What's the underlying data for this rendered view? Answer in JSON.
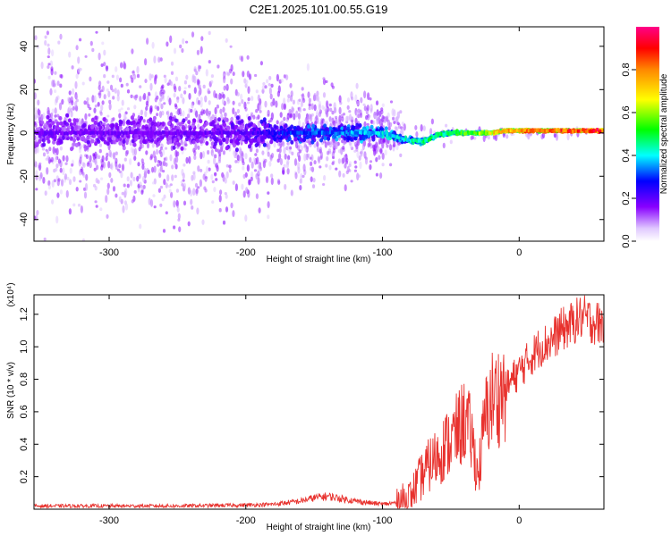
{
  "title": "C2E1.2025.101.00.55.G19",
  "chart_data": [
    {
      "type": "heatmap",
      "xlabel": "Height of straight line (km)",
      "ylabel": "Frequency (Hz)",
      "xlim": [
        -355,
        62
      ],
      "ylim": [
        -50,
        49
      ],
      "xticks": [
        -300,
        -200,
        -100,
        0
      ],
      "yticks": [
        40,
        20,
        0,
        -20,
        -40
      ],
      "grid": false,
      "colorbar": {
        "label": "Normalized spectral amplitude",
        "range": [
          0,
          1
        ],
        "ticks": [
          "0.0",
          "0.2",
          "0.4",
          "0.6",
          "0.8"
        ],
        "colors": [
          "#ffffff",
          "#8800ff",
          "#0000ff",
          "#00ffff",
          "#00ff00",
          "#ffff00",
          "#ff8800",
          "#ff0000",
          "#ff0088"
        ]
      },
      "ridge": {
        "x": [
          -355,
          -300,
          -250,
          -200,
          -170,
          -130,
          -100,
          -85,
          -70,
          -60,
          -50,
          -40,
          -30,
          -20,
          -10,
          0,
          20,
          40,
          62
        ],
        "center_hz": [
          0,
          0,
          0,
          0,
          0,
          0,
          0,
          -3,
          -4,
          -1,
          0,
          0,
          0,
          0,
          1,
          1,
          1,
          1,
          1
        ],
        "amplitude": [
          0.18,
          0.18,
          0.18,
          0.2,
          0.3,
          0.35,
          0.4,
          0.42,
          0.48,
          0.45,
          0.5,
          0.55,
          0.6,
          0.7,
          0.78,
          0.82,
          0.85,
          0.88,
          0.9
        ],
        "spread_hz": [
          30,
          30,
          30,
          28,
          18,
          16,
          12,
          6,
          5,
          4,
          3,
          3,
          2.5,
          2,
          2,
          2,
          2,
          2,
          2
        ]
      }
    },
    {
      "type": "line",
      "xlabel": "Height of straight line (km)",
      "ylabel": "SNR (10 * v/v)",
      "y_multiplier": "(x10⁴)",
      "xlim": [
        -355,
        62
      ],
      "ylim": [
        0,
        1.32
      ],
      "xticks": [
        -300,
        -200,
        -100,
        0
      ],
      "yticks": [
        0.2,
        0.4,
        0.6,
        0.8,
        1.0,
        1.2
      ],
      "ytick_labels": [
        "0.2",
        "0.4",
        "0.6",
        "0.8",
        "1.0",
        "1.2"
      ],
      "color": "#e8322e",
      "series": [
        {
          "x": [
            -355,
            -300,
            -250,
            -200,
            -180,
            -160,
            -150,
            -140,
            -120,
            -100,
            -90,
            -80,
            -75,
            -70,
            -65,
            -60,
            -55,
            -50,
            -45,
            -40,
            -35,
            -30,
            -25,
            -20,
            -15,
            -10,
            -5,
            0,
            5,
            10,
            15,
            20,
            25,
            30,
            35,
            40,
            45,
            50,
            55,
            62
          ],
          "y": [
            0.02,
            0.02,
            0.02,
            0.025,
            0.03,
            0.05,
            0.07,
            0.08,
            0.05,
            0.03,
            0.04,
            0.08,
            0.15,
            0.22,
            0.28,
            0.32,
            0.38,
            0.42,
            0.48,
            0.55,
            0.45,
            0.2,
            0.55,
            0.68,
            0.7,
            0.74,
            0.8,
            0.85,
            0.9,
            0.95,
            1.0,
            1.02,
            1.05,
            1.1,
            1.12,
            1.15,
            1.18,
            1.17,
            1.15,
            1.14
          ]
        }
      ]
    }
  ]
}
